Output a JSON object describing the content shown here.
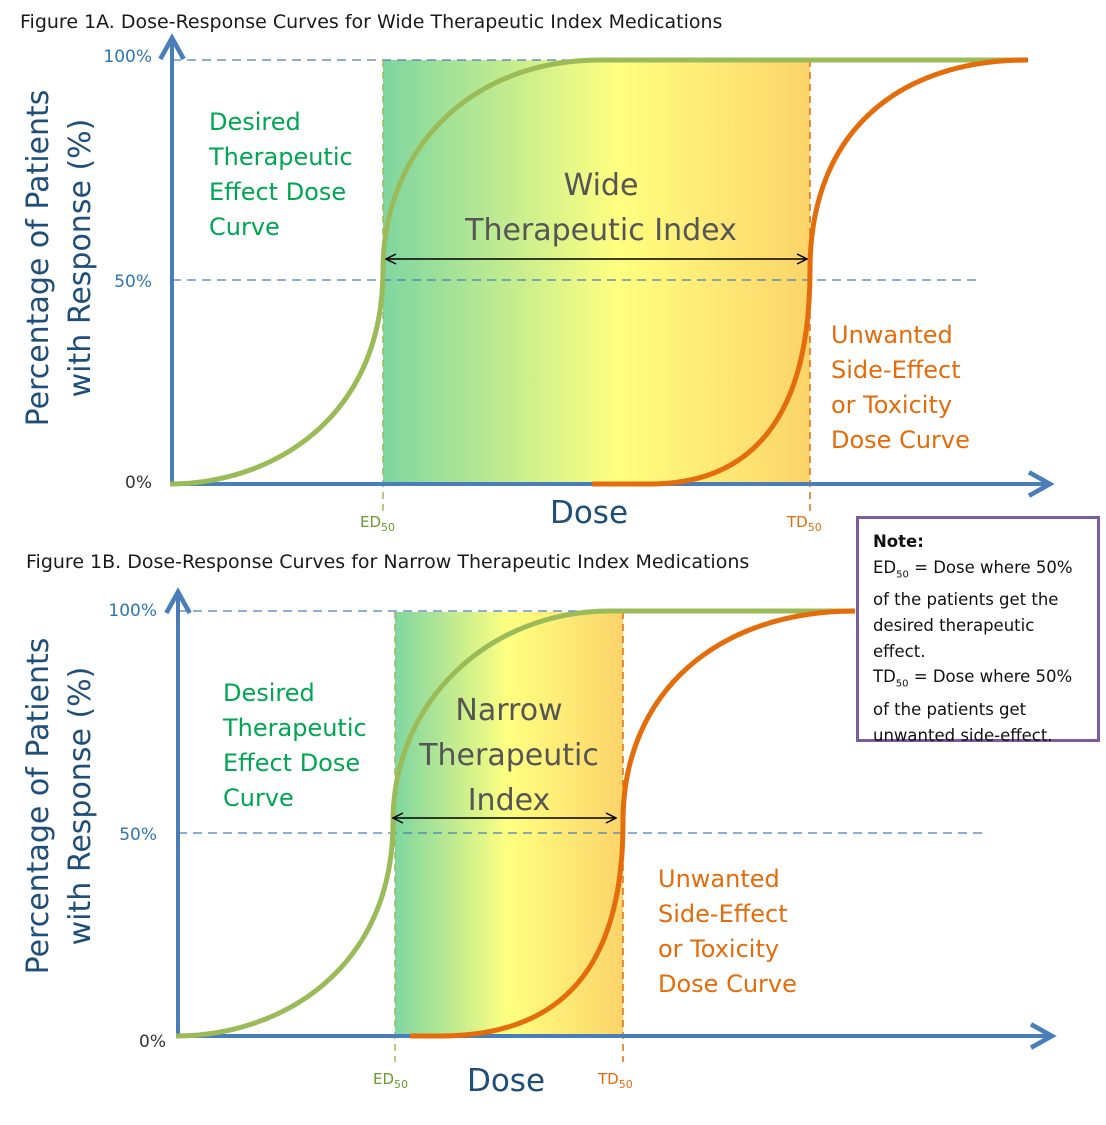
{
  "fig_a": {
    "title": "Figure 1A. Dose-Response Curves for Wide Therapeutic Index Medications",
    "ylabel_line1": "Percentage of Patients",
    "ylabel_line2": "with Response (%)",
    "tick_100": "100%",
    "tick_50": "50%",
    "tick_0": "0%",
    "xlabel": "Dose",
    "ed_main": "ED",
    "ed_sub": "50",
    "td_main": "TD",
    "td_sub": "50",
    "desired_lines": [
      "Desired",
      "Therapeutic",
      "Effect Dose",
      "Curve"
    ],
    "unwanted_lines": [
      "Unwanted",
      "Side-Effect",
      "or Toxicity",
      "Dose Curve"
    ],
    "index_lines": [
      "Wide",
      "Therapeutic Index"
    ]
  },
  "fig_b": {
    "title": "Figure 1B. Dose-Response Curves for Narrow Therapeutic Index Medications",
    "ylabel_line1": "Percentage of Patients",
    "ylabel_line2": "with Response (%)",
    "tick_100": "100%",
    "tick_50": "50%",
    "tick_0": "0%",
    "xlabel": "Dose",
    "ed_main": "ED",
    "ed_sub": "50",
    "td_main": "TD",
    "td_sub": "50",
    "desired_lines": [
      "Desired",
      "Therapeutic",
      "Effect Dose",
      "Curve"
    ],
    "unwanted_lines": [
      "Unwanted",
      "Side-Effect",
      "or Toxicity",
      "Dose Curve"
    ],
    "index_lines": [
      "Narrow",
      "Therapeutic",
      "Index"
    ]
  },
  "note": {
    "title": "Note:",
    "ed_main": "ED",
    "ed_sub": "50",
    "ed_def_1": " =  Dose where 50%",
    "ed_def_2": "of the patients get the",
    "ed_def_3": "desired therapeutic",
    "ed_def_4": "effect.",
    "td_main": "TD",
    "td_sub": "50",
    "td_def_1": " = Dose where 50%",
    "td_def_2": "of the patients get",
    "td_def_3": "unwanted side-effect."
  },
  "colors": {
    "axis": "#4a7ebb",
    "dashed": "#4a7ebb",
    "green_curve": "#9bbb59",
    "orange_curve": "#e46c0a",
    "band_start": "#7fd6a0",
    "band_mid": "#ffff80",
    "band_end": "#fcd46a",
    "note_border": "#7a5c9c"
  }
}
